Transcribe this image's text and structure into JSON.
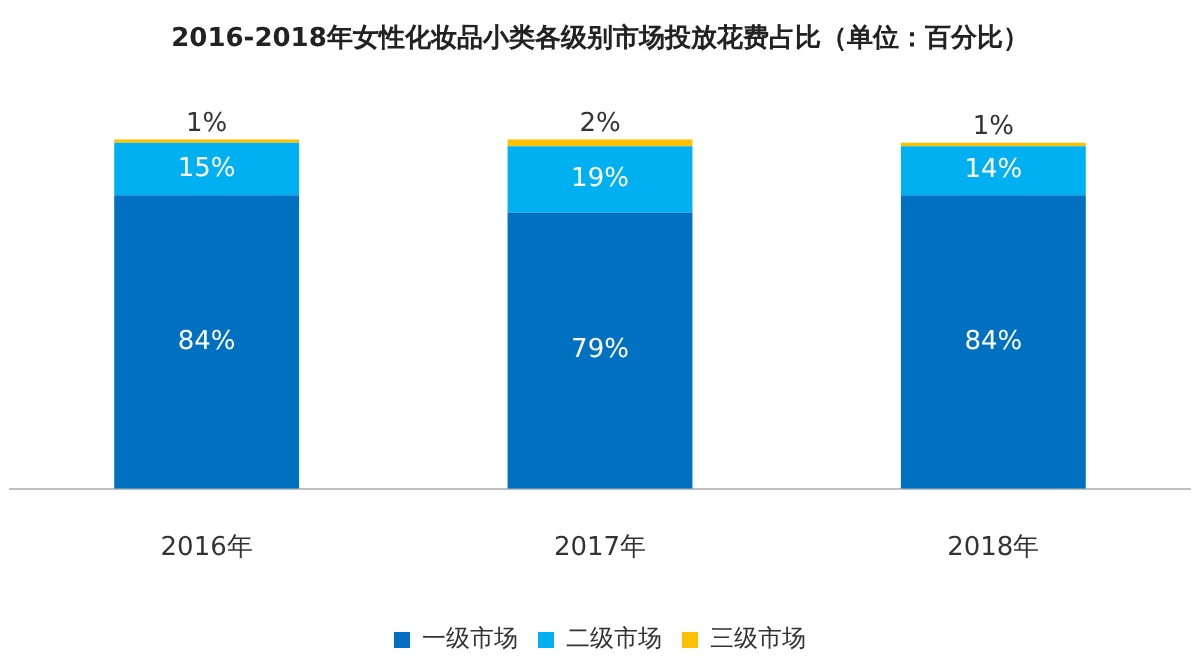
{
  "chart_data": {
    "type": "bar",
    "stacked": true,
    "title": "2016-2018年女性化妆品小类各级别市场投放花费占比（单位：百分比）",
    "categories": [
      "2016年",
      "2017年",
      "2018年"
    ],
    "legend": "bottom",
    "grid": false,
    "tick_labels": "x",
    "series": [
      {
        "name": "一级市场",
        "color": "#0070c0",
        "values": [
          84,
          79,
          84
        ],
        "value_labels": [
          "84%",
          "79%",
          "84%"
        ]
      },
      {
        "name": "二级市场",
        "color": "#00b0f0",
        "values": [
          15,
          19,
          14
        ],
        "value_labels": [
          "15%",
          "19%",
          "14%"
        ]
      },
      {
        "name": "三级市场",
        "color": "#ffc000",
        "values": [
          1,
          2,
          1
        ],
        "value_labels": [
          "1%",
          "2%",
          "1%"
        ]
      }
    ]
  }
}
